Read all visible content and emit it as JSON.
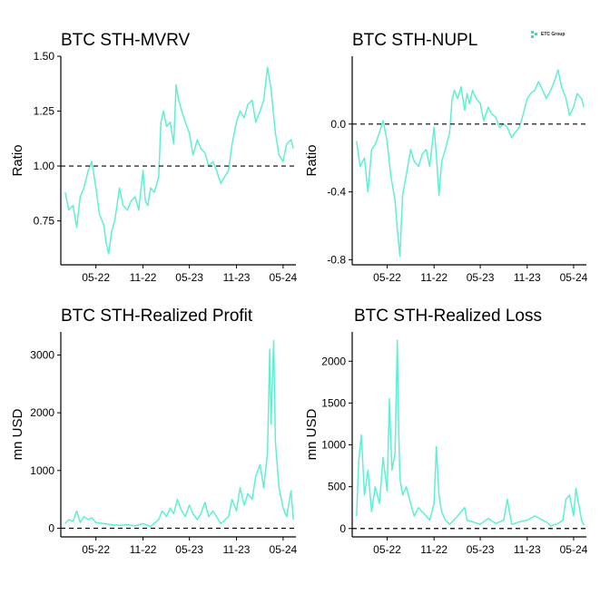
{
  "brand": {
    "name": "ETC Group",
    "icon": "etc-group-logo-icon",
    "color": "#3fd9c2"
  },
  "style": {
    "series_color": "#5ef0d3",
    "ref_line_color": "#000000"
  },
  "chart_data": [
    {
      "type": "line",
      "title": "BTC STH-MVRV",
      "ylabel": "Ratio",
      "xlabel": "",
      "x_tick_labels": [
        "05-22",
        "11-22",
        "05-23",
        "11-23",
        "05-24"
      ],
      "x_tick_dates": [
        "2022-05-01",
        "2022-11-01",
        "2023-05-01",
        "2023-11-01",
        "2024-05-01"
      ],
      "y_tick_labels": [
        "0.75",
        "1.00",
        "1.25",
        "1.50"
      ],
      "y_tick_values": [
        0.75,
        1.0,
        1.25,
        1.5
      ],
      "ylim": [
        0.55,
        1.5
      ],
      "xlim": [
        "2021-12-15",
        "2024-06-20"
      ],
      "reference_line": 1.0,
      "grid": false,
      "series": [
        {
          "x": [
            "2022-01-01",
            "2022-01-15",
            "2022-02-01",
            "2022-02-15",
            "2022-03-01",
            "2022-03-15",
            "2022-04-01",
            "2022-04-15",
            "2022-05-01",
            "2022-05-15",
            "2022-06-01",
            "2022-06-10",
            "2022-06-20",
            "2022-07-01",
            "2022-07-15",
            "2022-08-01",
            "2022-08-15",
            "2022-09-01",
            "2022-09-15",
            "2022-10-01",
            "2022-10-15",
            "2022-11-01",
            "2022-11-10",
            "2022-11-20",
            "2022-12-01",
            "2022-12-15",
            "2023-01-01",
            "2023-01-10",
            "2023-01-20",
            "2023-02-01",
            "2023-02-15",
            "2023-03-01",
            "2023-03-10",
            "2023-03-20",
            "2023-04-01",
            "2023-04-15",
            "2023-05-01",
            "2023-05-15",
            "2023-06-01",
            "2023-06-15",
            "2023-07-01",
            "2023-07-15",
            "2023-08-01",
            "2023-08-15",
            "2023-09-01",
            "2023-09-15",
            "2023-10-01",
            "2023-10-15",
            "2023-11-01",
            "2023-11-15",
            "2023-12-01",
            "2023-12-15",
            "2024-01-01",
            "2024-01-15",
            "2024-02-01",
            "2024-02-15",
            "2024-03-01",
            "2024-03-15",
            "2024-04-01",
            "2024-04-15",
            "2024-05-01",
            "2024-05-15",
            "2024-06-01",
            "2024-06-10"
          ],
          "values": [
            0.88,
            0.8,
            0.82,
            0.72,
            0.86,
            0.9,
            0.98,
            1.02,
            0.9,
            0.78,
            0.73,
            0.65,
            0.6,
            0.7,
            0.76,
            0.9,
            0.82,
            0.8,
            0.84,
            0.86,
            0.8,
            0.98,
            0.84,
            0.82,
            0.9,
            0.88,
            0.95,
            1.2,
            1.25,
            1.18,
            1.2,
            1.1,
            1.37,
            1.3,
            1.25,
            1.2,
            1.15,
            1.05,
            1.12,
            1.08,
            1.06,
            1.0,
            1.02,
            0.98,
            0.92,
            0.95,
            0.98,
            1.1,
            1.2,
            1.25,
            1.22,
            1.28,
            1.3,
            1.2,
            1.25,
            1.3,
            1.45,
            1.35,
            1.15,
            1.05,
            1.02,
            1.1,
            1.12,
            1.08
          ]
        }
      ]
    },
    {
      "type": "line",
      "title": "BTC STH-NUPL",
      "ylabel": "Ratio",
      "xlabel": "",
      "x_tick_labels": [
        "05-22",
        "11-22",
        "05-23",
        "11-23",
        "05-24"
      ],
      "x_tick_dates": [
        "2022-05-01",
        "2022-11-01",
        "2023-05-01",
        "2023-11-01",
        "2024-05-01"
      ],
      "y_tick_labels": [
        "-0.8",
        "-0.4",
        "0.0"
      ],
      "y_tick_values": [
        -0.8,
        -0.4,
        0.0
      ],
      "ylim": [
        -0.83,
        0.4
      ],
      "xlim": [
        "2021-12-15",
        "2024-06-20"
      ],
      "reference_line": 0.0,
      "grid": false,
      "series": [
        {
          "x": [
            "2022-01-01",
            "2022-01-15",
            "2022-02-01",
            "2022-02-15",
            "2022-03-01",
            "2022-03-15",
            "2022-04-01",
            "2022-04-15",
            "2022-05-01",
            "2022-05-15",
            "2022-06-01",
            "2022-06-10",
            "2022-06-20",
            "2022-07-01",
            "2022-07-15",
            "2022-08-01",
            "2022-08-15",
            "2022-09-01",
            "2022-09-15",
            "2022-10-01",
            "2022-10-15",
            "2022-11-01",
            "2022-11-10",
            "2022-11-20",
            "2022-12-01",
            "2022-12-15",
            "2023-01-01",
            "2023-01-10",
            "2023-01-20",
            "2023-02-01",
            "2023-02-15",
            "2023-03-01",
            "2023-03-10",
            "2023-03-20",
            "2023-04-01",
            "2023-04-15",
            "2023-05-01",
            "2023-05-15",
            "2023-06-01",
            "2023-06-15",
            "2023-07-01",
            "2023-07-15",
            "2023-08-01",
            "2023-08-15",
            "2023-09-01",
            "2023-09-15",
            "2023-10-01",
            "2023-10-15",
            "2023-11-01",
            "2023-11-15",
            "2023-12-01",
            "2023-12-15",
            "2024-01-01",
            "2024-01-15",
            "2024-02-01",
            "2024-02-15",
            "2024-03-01",
            "2024-03-15",
            "2024-04-01",
            "2024-04-15",
            "2024-05-01",
            "2024-05-15",
            "2024-06-01",
            "2024-06-10"
          ],
          "values": [
            -0.1,
            -0.25,
            -0.2,
            -0.4,
            -0.15,
            -0.12,
            -0.05,
            0.02,
            -0.1,
            -0.3,
            -0.45,
            -0.62,
            -0.78,
            -0.42,
            -0.3,
            -0.15,
            -0.22,
            -0.25,
            -0.18,
            -0.15,
            -0.25,
            -0.02,
            -0.18,
            -0.42,
            -0.22,
            -0.15,
            -0.05,
            0.14,
            0.2,
            0.15,
            0.22,
            0.08,
            0.18,
            0.12,
            0.2,
            0.15,
            0.12,
            0.02,
            0.1,
            0.06,
            0.04,
            -0.02,
            0.0,
            -0.02,
            -0.08,
            -0.05,
            -0.02,
            0.05,
            0.15,
            0.18,
            0.2,
            0.25,
            0.2,
            0.15,
            0.2,
            0.25,
            0.32,
            0.22,
            0.15,
            0.05,
            0.1,
            0.18,
            0.15,
            0.1
          ]
        }
      ]
    },
    {
      "type": "line",
      "title": "BTC STH-Realized Profit",
      "ylabel": "mn USD",
      "xlabel": "",
      "x_tick_labels": [
        "05-22",
        "11-22",
        "05-23",
        "11-23",
        "05-24"
      ],
      "x_tick_dates": [
        "2022-05-01",
        "2022-11-01",
        "2023-05-01",
        "2023-11-01",
        "2024-05-01"
      ],
      "y_tick_labels": [
        "0",
        "1000",
        "2000",
        "3000"
      ],
      "y_tick_values": [
        0,
        1000,
        2000,
        3000
      ],
      "ylim": [
        -150,
        3400
      ],
      "xlim": [
        "2021-12-15",
        "2024-06-20"
      ],
      "reference_line": 0,
      "grid": false,
      "series": [
        {
          "x": [
            "2022-01-01",
            "2022-01-15",
            "2022-02-01",
            "2022-02-15",
            "2022-03-01",
            "2022-03-15",
            "2022-04-01",
            "2022-04-15",
            "2022-05-01",
            "2022-06-01",
            "2022-07-01",
            "2022-08-01",
            "2022-09-01",
            "2022-10-01",
            "2022-11-01",
            "2022-12-01",
            "2023-01-01",
            "2023-01-15",
            "2023-02-01",
            "2023-02-15",
            "2023-03-01",
            "2023-03-15",
            "2023-04-01",
            "2023-04-15",
            "2023-05-01",
            "2023-05-15",
            "2023-06-01",
            "2023-06-15",
            "2023-07-01",
            "2023-07-15",
            "2023-08-01",
            "2023-09-01",
            "2023-10-01",
            "2023-10-15",
            "2023-11-01",
            "2023-11-15",
            "2023-12-01",
            "2023-12-15",
            "2024-01-01",
            "2024-01-15",
            "2024-02-01",
            "2024-02-15",
            "2024-03-01",
            "2024-03-10",
            "2024-03-15",
            "2024-03-25",
            "2024-04-01",
            "2024-04-15",
            "2024-05-01",
            "2024-05-15",
            "2024-06-01",
            "2024-06-10"
          ],
          "values": [
            80,
            150,
            120,
            300,
            100,
            200,
            150,
            180,
            100,
            80,
            60,
            50,
            60,
            40,
            80,
            30,
            150,
            300,
            200,
            350,
            250,
            500,
            300,
            200,
            400,
            250,
            150,
            250,
            450,
            200,
            300,
            80,
            200,
            500,
            300,
            700,
            400,
            600,
            500,
            900,
            1100,
            700,
            1300,
            3100,
            1800,
            3250,
            1500,
            700,
            350,
            200,
            650,
            150
          ]
        }
      ]
    },
    {
      "type": "line",
      "title": "BTC STH-Realized Loss",
      "ylabel": "mn USD",
      "xlabel": "",
      "x_tick_labels": [
        "05-22",
        "11-22",
        "05-23",
        "11-23",
        "05-24"
      ],
      "x_tick_dates": [
        "2022-05-01",
        "2022-11-01",
        "2023-05-01",
        "2023-11-01",
        "2024-05-01"
      ],
      "y_tick_labels": [
        "0",
        "500",
        "1000",
        "1500",
        "2000"
      ],
      "y_tick_values": [
        0,
        500,
        1000,
        1500,
        2000
      ],
      "ylim": [
        -100,
        2350
      ],
      "xlim": [
        "2021-12-15",
        "2024-06-20"
      ],
      "reference_line": 0,
      "grid": false,
      "series": [
        {
          "x": [
            "2022-01-01",
            "2022-01-10",
            "2022-01-20",
            "2022-02-01",
            "2022-02-15",
            "2022-03-01",
            "2022-03-15",
            "2022-04-01",
            "2022-04-15",
            "2022-05-01",
            "2022-05-10",
            "2022-05-20",
            "2022-06-01",
            "2022-06-10",
            "2022-06-15",
            "2022-06-20",
            "2022-07-01",
            "2022-07-15",
            "2022-08-01",
            "2022-08-15",
            "2022-09-01",
            "2022-09-15",
            "2022-10-01",
            "2022-10-15",
            "2022-11-01",
            "2022-11-10",
            "2022-11-20",
            "2022-12-01",
            "2022-12-15",
            "2023-01-01",
            "2023-02-01",
            "2023-03-01",
            "2023-03-10",
            "2023-04-01",
            "2023-05-01",
            "2023-06-01",
            "2023-07-01",
            "2023-08-01",
            "2023-08-15",
            "2023-09-01",
            "2023-10-01",
            "2023-11-01",
            "2023-12-01",
            "2024-01-01",
            "2024-01-15",
            "2024-02-01",
            "2024-03-01",
            "2024-03-20",
            "2024-04-01",
            "2024-04-15",
            "2024-05-01",
            "2024-05-10",
            "2024-06-01",
            "2024-06-10"
          ],
          "values": [
            150,
            820,
            1120,
            400,
            700,
            200,
            500,
            300,
            850,
            450,
            1550,
            700,
            900,
            2250,
            1200,
            600,
            400,
            500,
            300,
            150,
            250,
            200,
            150,
            100,
            300,
            980,
            400,
            200,
            100,
            50,
            150,
            250,
            100,
            80,
            50,
            120,
            60,
            100,
            350,
            50,
            80,
            100,
            150,
            100,
            80,
            30,
            60,
            100,
            350,
            400,
            150,
            480,
            100,
            40
          ]
        }
      ]
    }
  ]
}
